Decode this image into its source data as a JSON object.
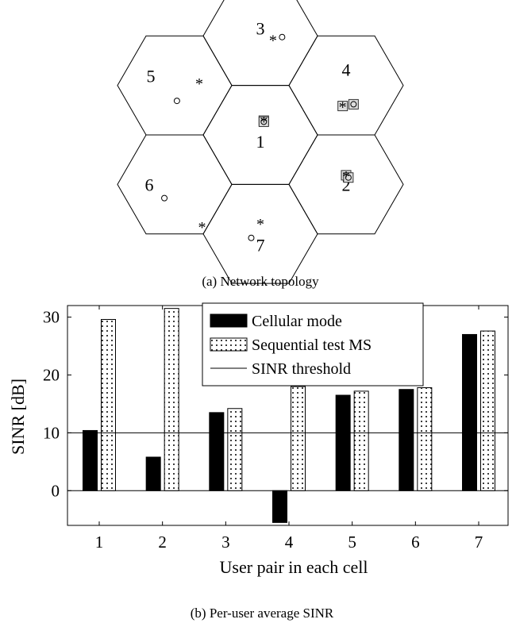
{
  "topology": {
    "caption": "(a) Network topology",
    "cells": [
      {
        "label": "1",
        "cx": 0,
        "cy": 0
      },
      {
        "label": "2",
        "cx": 1,
        "cy": 0.5
      },
      {
        "label": "3",
        "cx": 0,
        "cy": -1
      },
      {
        "label": "4",
        "cx": 1,
        "cy": -0.5
      },
      {
        "label": "5",
        "cx": -1,
        "cy": -0.5
      },
      {
        "label": "6",
        "cx": -1,
        "cy": 0.5
      },
      {
        "label": "7",
        "cx": 0,
        "cy": 1
      }
    ],
    "users": [
      {
        "cell": "1",
        "star": [
          0.06,
          -0.25
        ],
        "circle": [
          0.06,
          -0.23
        ],
        "boxed": true
      },
      {
        "cell": "2",
        "star": [
          0.0,
          -0.16
        ],
        "circle": [
          0.04,
          -0.12
        ],
        "boxed": true
      },
      {
        "cell": "3",
        "star": [
          0.22,
          0.06
        ],
        "circle": [
          0.38,
          0.02
        ],
        "boxed": false
      },
      {
        "cell": "4",
        "star": [
          -0.06,
          0.36
        ],
        "circle": [
          0.13,
          0.33
        ],
        "boxed": true
      },
      {
        "cell": "5",
        "star": [
          0.43,
          -0.05
        ],
        "circle": [
          0.04,
          0.27
        ],
        "boxed": false
      },
      {
        "cell": "6",
        "star": [
          0.48,
          0.73
        ],
        "circle": [
          -0.18,
          0.24
        ],
        "boxed": false
      },
      {
        "cell": "7",
        "star": [
          0.0,
          -0.19
        ],
        "circle": [
          -0.16,
          0.07
        ],
        "boxed": false
      }
    ]
  },
  "chart_data": {
    "type": "bar",
    "caption": "(b) Per-user average SINR",
    "categories": [
      "1",
      "2",
      "3",
      "4",
      "5",
      "6",
      "7"
    ],
    "series": [
      {
        "name": "Cellular mode",
        "values": [
          10.4,
          5.8,
          13.5,
          -5.5,
          16.5,
          17.5,
          27.0
        ],
        "fill": "#000000"
      },
      {
        "name": "Sequential test MS",
        "values": [
          29.6,
          31.5,
          14.2,
          18.0,
          17.2,
          17.8,
          27.6
        ],
        "fill": "dotted"
      }
    ],
    "reference_line": {
      "name": "SINR threshold",
      "value": 10
    },
    "xlabel": "User pair in each cell",
    "ylabel": "SINR [dB]",
    "ylim": [
      -6,
      32
    ],
    "yticks": [
      0,
      10,
      20,
      30
    ],
    "legend_position": "top-center"
  }
}
